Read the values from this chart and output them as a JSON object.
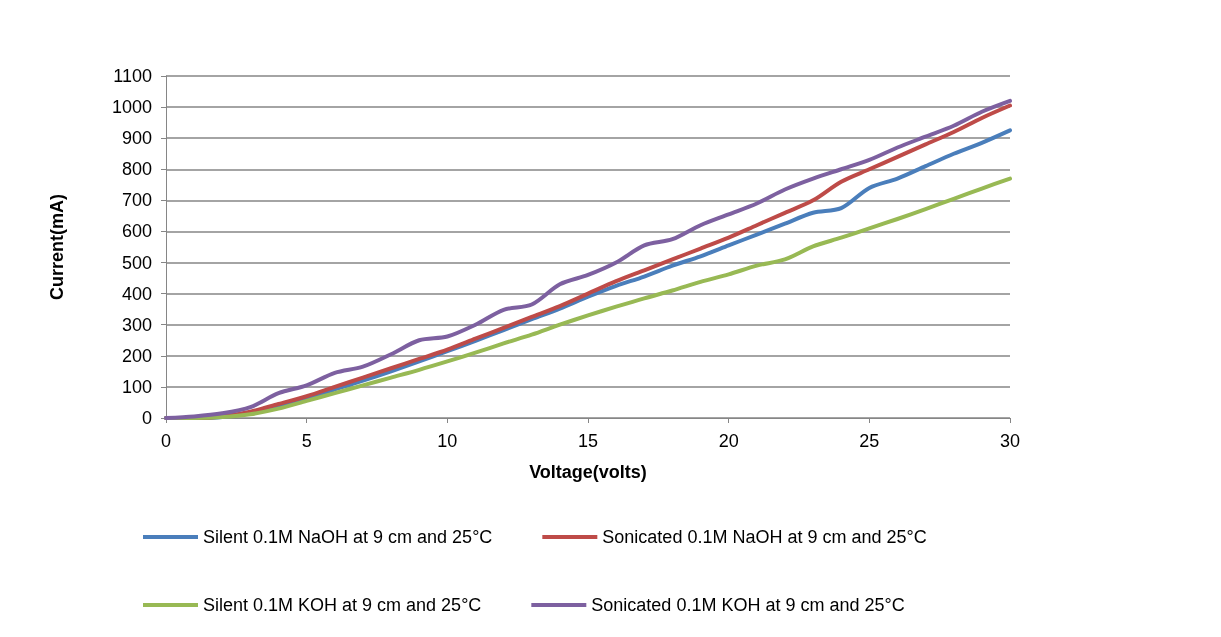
{
  "chart_data": {
    "type": "line",
    "xlabel": "Voltage(volts)",
    "ylabel": "Current(mA)",
    "xlim": [
      0,
      30
    ],
    "xticks": [
      0,
      5,
      10,
      15,
      20,
      25,
      30
    ],
    "ylim": [
      0,
      1100
    ],
    "yticks": [
      0,
      100,
      200,
      300,
      400,
      500,
      600,
      700,
      800,
      900,
      1000,
      1100
    ],
    "grid": "y",
    "legend": "bottom",
    "marker": "none",
    "line_style": "solid",
    "x": [
      0,
      1,
      2,
      3,
      4,
      5,
      6,
      7,
      8,
      9,
      10,
      11,
      12,
      13,
      14,
      15,
      16,
      17,
      18,
      19,
      20,
      21,
      22,
      23,
      24,
      25,
      26,
      27,
      28,
      29,
      30
    ],
    "series": [
      {
        "name": "Silent 0.1M NaOH at 9 cm and 25°C",
        "color": "#4a7ebb",
        "values": [
          0,
          0,
          3,
          18,
          40,
          62,
          92,
          120,
          150,
          182,
          215,
          248,
          283,
          318,
          352,
          390,
          425,
          455,
          490,
          520,
          555,
          590,
          625,
          660,
          675,
          740,
          770,
          810,
          850,
          885,
          925
        ]
      },
      {
        "name": "Sonicated 0.1M NaOH at 9 cm and 25°C",
        "color": "#be4b48",
        "values": [
          0,
          0,
          5,
          20,
          45,
          70,
          100,
          130,
          160,
          190,
          220,
          255,
          290,
          325,
          360,
          400,
          440,
          475,
          510,
          545,
          580,
          620,
          660,
          700,
          760,
          800,
          840,
          880,
          920,
          965,
          1005
        ]
      },
      {
        "name": "Silent 0.1M KOH at 9 cm and 25°C",
        "color": "#98b954",
        "values": [
          0,
          0,
          3,
          12,
          30,
          55,
          80,
          105,
          130,
          155,
          182,
          210,
          240,
          268,
          300,
          330,
          358,
          385,
          410,
          438,
          462,
          490,
          510,
          552,
          580,
          610,
          640,
          672,
          705,
          738,
          770
        ]
      },
      {
        "name": "Sonicated 0.1M KOH at 9 cm and 25°C",
        "color": "#7d60a0",
        "values": [
          0,
          5,
          15,
          35,
          80,
          105,
          145,
          165,
          205,
          250,
          262,
          300,
          348,
          365,
          430,
          460,
          500,
          555,
          575,
          620,
          655,
          690,
          735,
          770,
          800,
          830,
          870,
          905,
          940,
          985,
          1020
        ]
      }
    ]
  }
}
